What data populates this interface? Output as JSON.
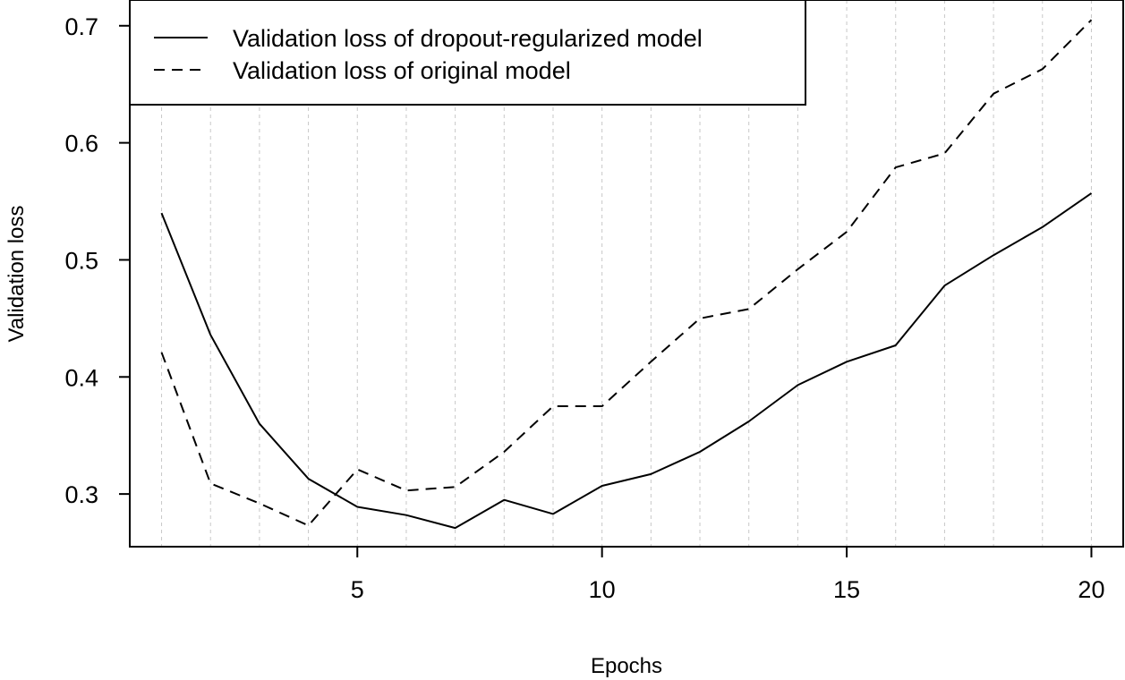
{
  "chart_data": {
    "type": "line",
    "title": "",
    "xlabel": "Epochs",
    "ylabel": "Validation loss",
    "xlim": [
      0.35,
      20.65
    ],
    "ylim": [
      0.255,
      0.722
    ],
    "xticks": [
      5,
      10,
      15,
      20
    ],
    "yticks": [
      0.3,
      0.4,
      0.5,
      0.6,
      0.7
    ],
    "x_tick_labels": [
      "5",
      "10",
      "15",
      "20"
    ],
    "y_tick_labels": [
      "0.3",
      "0.4",
      "0.5",
      "0.6",
      "0.7"
    ],
    "grid": "vertical dotted lines at each epoch",
    "legend_position": "top-left",
    "x": [
      1,
      2,
      3,
      4,
      5,
      6,
      7,
      8,
      9,
      10,
      11,
      12,
      13,
      14,
      15,
      16,
      17,
      18,
      19,
      20
    ],
    "series": [
      {
        "name": "Validation loss of dropout-regularized model",
        "line_style": "solid",
        "color": "#000000",
        "values": [
          0.54,
          0.436,
          0.36,
          0.313,
          0.289,
          0.282,
          0.271,
          0.295,
          0.283,
          0.307,
          0.317,
          0.336,
          0.362,
          0.393,
          0.413,
          0.427,
          0.478,
          0.504,
          0.528,
          0.557
        ]
      },
      {
        "name": "Validation loss of original model",
        "line_style": "dashed",
        "color": "#000000",
        "values": [
          0.421,
          0.309,
          0.292,
          0.273,
          0.321,
          0.303,
          0.306,
          0.336,
          0.375,
          0.375,
          0.413,
          0.45,
          0.458,
          0.492,
          0.524,
          0.579,
          0.591,
          0.642,
          0.663,
          0.705
        ]
      }
    ]
  }
}
